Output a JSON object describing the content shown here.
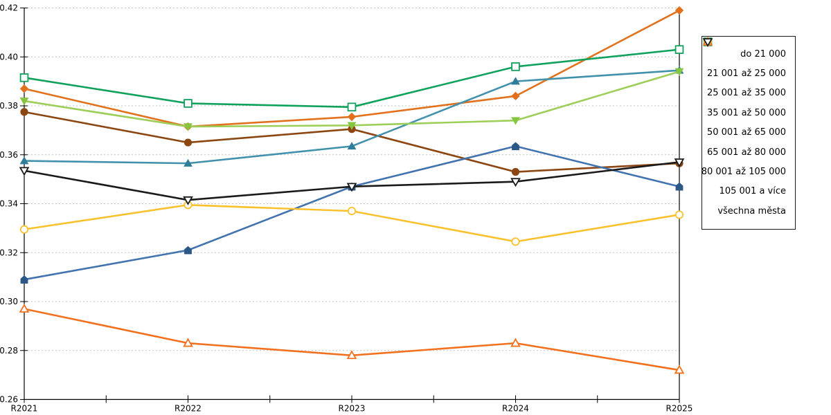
{
  "chart_data": {
    "type": "line",
    "title": "",
    "xlabel": "",
    "ylabel": "",
    "x_categories": [
      "R2021",
      "R2022",
      "R2023",
      "R2024",
      "R2025"
    ],
    "ylim": [
      0.26,
      0.42
    ],
    "y_tick_labels": [
      "0.26",
      "0.28",
      "0.30",
      "0.32",
      "0.34",
      "0.36",
      "0.38",
      "0.40",
      "0.42"
    ],
    "grid": "horizontal-dashed",
    "legend_position": "right",
    "series": [
      {
        "name": "do 21 000",
        "marker": "diamond-filled",
        "color": "#E2711D",
        "values": [
          0.387,
          0.3715,
          0.3755,
          0.384,
          0.419
        ]
      },
      {
        "name": "21 001 až 25 000",
        "marker": "circle-filled",
        "color": "#8C4611",
        "values": [
          0.3775,
          0.365,
          0.3705,
          0.353,
          0.3565
        ]
      },
      {
        "name": "25 001 až 35 000",
        "marker": "triangle-up-filled",
        "color": "#4291AC",
        "marker_color": "#2F7E99",
        "values": [
          0.3575,
          0.3565,
          0.3635,
          0.39,
          0.3945
        ]
      },
      {
        "name": "35 001 až 50 000",
        "marker": "pentagon-filled",
        "color": "#4273AE",
        "marker_color": "#2C5887",
        "values": [
          0.309,
          0.321,
          0.347,
          0.3635,
          0.347
        ]
      },
      {
        "name": "50 001 až 65 000",
        "marker": "triangle-down-filled",
        "color": "#9CCE58",
        "marker_color": "#86C53F",
        "values": [
          0.382,
          0.3715,
          0.372,
          0.374,
          0.394
        ]
      },
      {
        "name": "65 001 až 80 000",
        "marker": "square-hollow",
        "color": "#10A25C",
        "values": [
          0.3915,
          0.381,
          0.3795,
          0.396,
          0.403
        ]
      },
      {
        "name": "80 001 až 105 000",
        "marker": "circle-hollow",
        "color": "#FBC12D",
        "values": [
          0.3295,
          0.3395,
          0.337,
          0.3245,
          0.3355
        ]
      },
      {
        "name": "105 001 a více",
        "marker": "triangle-up-hollow",
        "color": "#F2701E",
        "values": [
          0.297,
          0.283,
          0.278,
          0.283,
          0.272
        ]
      },
      {
        "name": "všechna města",
        "marker": "triangle-down-hollow",
        "color": "#1A1A1A",
        "values": [
          0.3535,
          0.3415,
          0.347,
          0.349,
          0.357
        ]
      }
    ],
    "axis_color": "#000000",
    "gridline_color": "#C0C0C0"
  }
}
